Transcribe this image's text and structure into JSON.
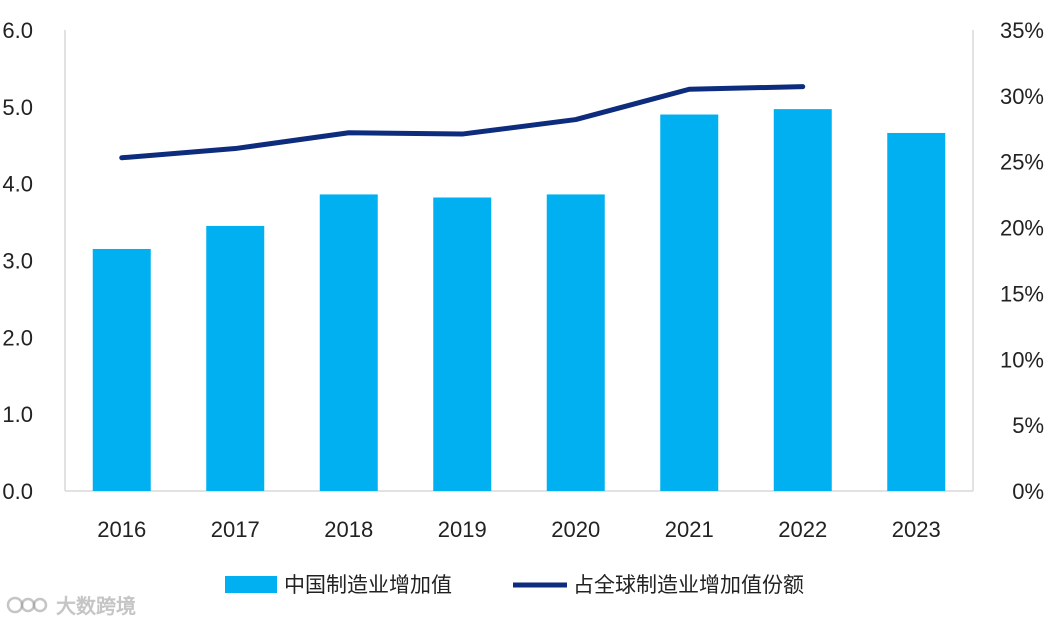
{
  "chart_data": {
    "type": "bar",
    "categories": [
      "2016",
      "2017",
      "2018",
      "2019",
      "2020",
      "2021",
      "2022",
      "2023"
    ],
    "series": [
      {
        "name": "中国制造业增加值",
        "kind": "bar",
        "axis": "left",
        "values": [
          3.15,
          3.45,
          3.86,
          3.82,
          3.86,
          4.9,
          4.97,
          4.66
        ]
      },
      {
        "name": "占全球制造业增加值份额",
        "kind": "line",
        "axis": "right",
        "values": [
          25.3,
          26.0,
          27.2,
          27.1,
          28.2,
          30.5,
          30.7,
          null
        ]
      }
    ],
    "y_left": {
      "ylim": [
        0,
        6
      ],
      "ticks": [
        "0.0",
        "1.0",
        "2.0",
        "3.0",
        "4.0",
        "5.0",
        "6.0"
      ]
    },
    "y_right": {
      "ylim": [
        0,
        35
      ],
      "ticks": [
        "0%",
        "5%",
        "10%",
        "15%",
        "20%",
        "25%",
        "30%",
        "35%"
      ]
    },
    "legend": {
      "position": "bottom",
      "items": [
        "中国制造业增加值",
        "占全球制造业增加值份额"
      ]
    },
    "grid": false
  },
  "colors": {
    "bar": "#00b0f0",
    "line": "#0d2c7d",
    "axis": "#d9d9d9"
  },
  "watermark": {
    "text": "大数跨境",
    "icon": "logo-icon"
  }
}
